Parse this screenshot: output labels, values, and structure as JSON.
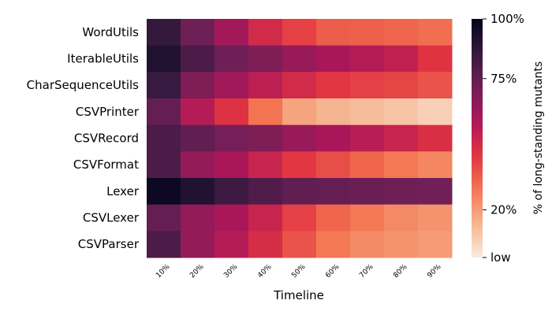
{
  "chart_data": {
    "type": "heatmap",
    "title": "",
    "xlabel": "Timeline",
    "ylabel": "",
    "x": [
      "10%",
      "20%",
      "30%",
      "40%",
      "50%",
      "60%",
      "70%",
      "80%",
      "90%"
    ],
    "y": [
      "WordUtils",
      "IterableUtils",
      "CharSequenceUtils",
      "CSVPrinter",
      "CSVRecord",
      "CSVFormat",
      "Lexer",
      "CSVLexer",
      "CSVParser"
    ],
    "values": [
      [
        0.86,
        0.72,
        0.6,
        0.47,
        0.4,
        0.34,
        0.33,
        0.32,
        0.3
      ],
      [
        0.91,
        0.8,
        0.72,
        0.68,
        0.62,
        0.58,
        0.55,
        0.52,
        0.43
      ],
      [
        0.85,
        0.68,
        0.6,
        0.53,
        0.47,
        0.42,
        0.4,
        0.39,
        0.36
      ],
      [
        0.74,
        0.55,
        0.44,
        0.29,
        0.18,
        0.14,
        0.12,
        0.1,
        0.07
      ],
      [
        0.8,
        0.75,
        0.7,
        0.68,
        0.62,
        0.58,
        0.54,
        0.5,
        0.45
      ],
      [
        0.8,
        0.63,
        0.58,
        0.5,
        0.42,
        0.37,
        0.32,
        0.28,
        0.25
      ],
      [
        0.97,
        0.91,
        0.84,
        0.79,
        0.75,
        0.74,
        0.73,
        0.72,
        0.71
      ],
      [
        0.74,
        0.63,
        0.58,
        0.5,
        0.4,
        0.32,
        0.28,
        0.24,
        0.22
      ],
      [
        0.8,
        0.63,
        0.55,
        0.46,
        0.36,
        0.28,
        0.24,
        0.22,
        0.2
      ]
    ],
    "colorbar": {
      "label": "% of long-standing mutants",
      "ticks": [
        {
          "value": 1.0,
          "label": "100%"
        },
        {
          "value": 0.75,
          "label": "75%"
        },
        {
          "value": 0.2,
          "label": "20%"
        },
        {
          "value": 0.0,
          "label": "low"
        }
      ]
    },
    "colormap": [
      "#faebdd",
      "#f6b48f",
      "#f37651",
      "#e13342",
      "#ad1759",
      "#701f57",
      "#35193e",
      "#03051a"
    ],
    "grid": false,
    "legend": "right"
  }
}
